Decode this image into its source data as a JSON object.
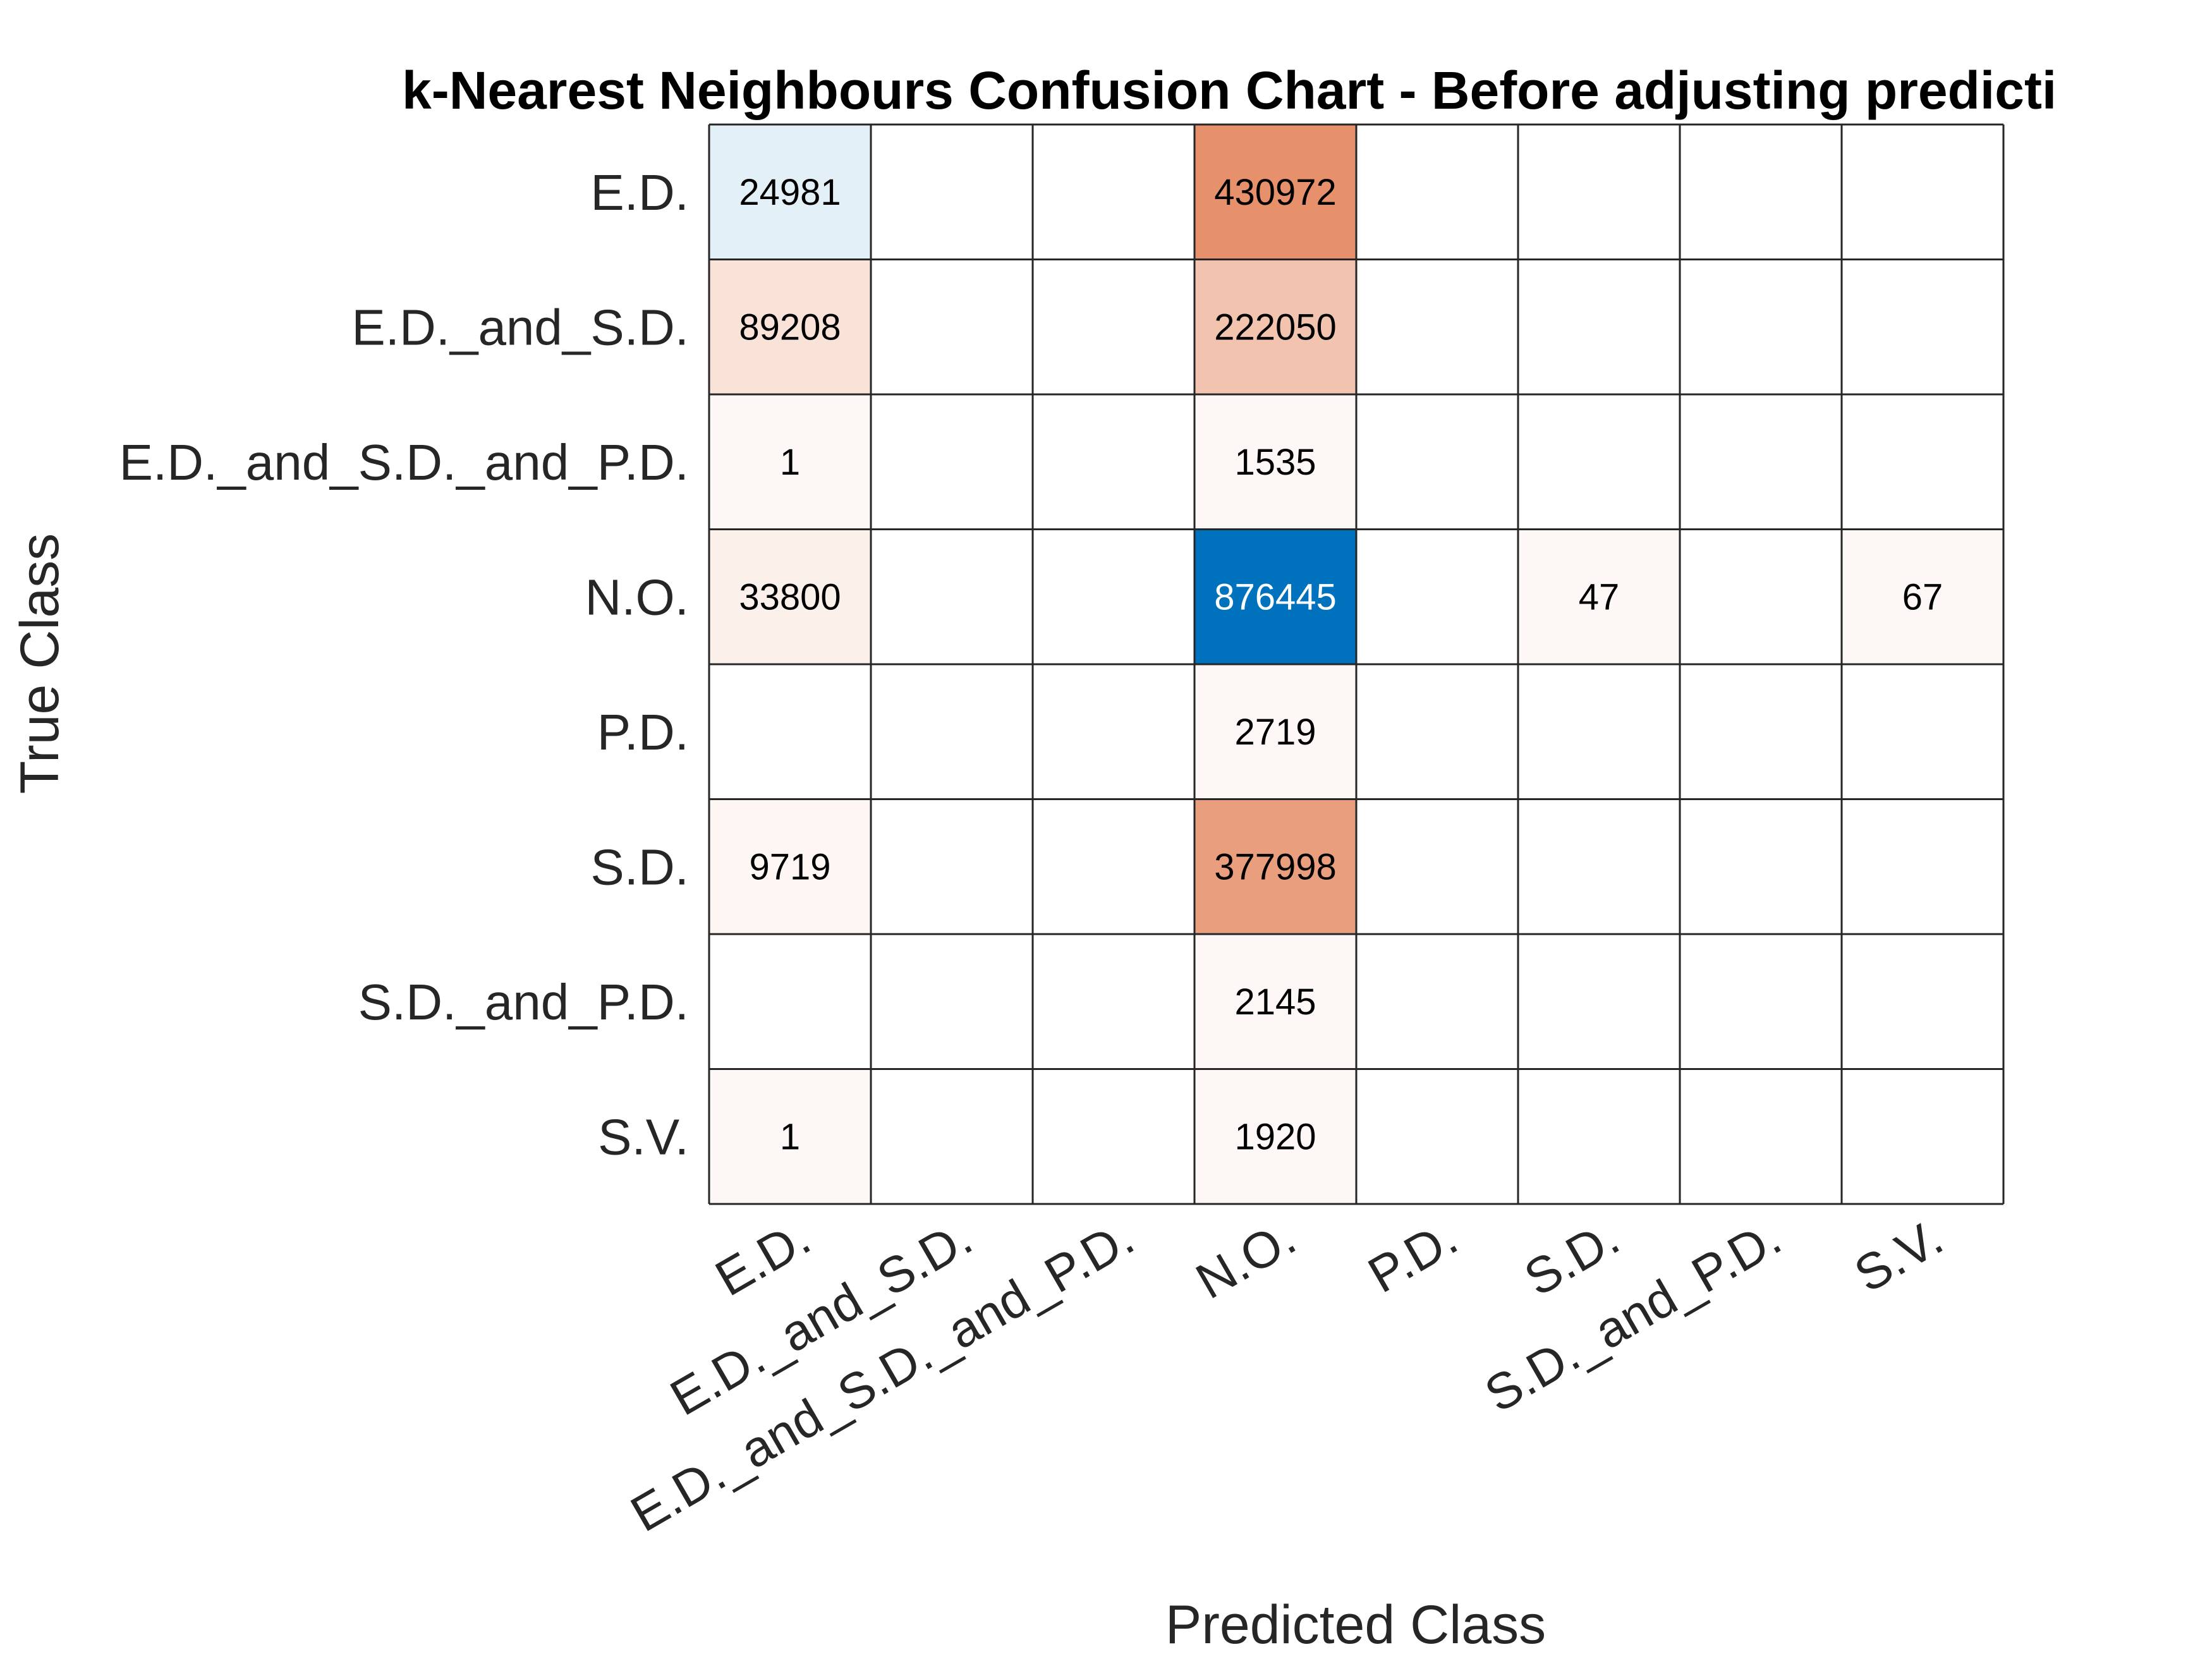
{
  "chart_data": {
    "type": "heatmap",
    "title": "k-Nearest Neighbours Confusion Chart - Before adjusting predicti",
    "xlabel": "Predicted Class",
    "ylabel": "True Class",
    "classes": [
      "E.D.",
      "E.D._and_S.D.",
      "E.D._and_S.D._and_P.D.",
      "N.O.",
      "P.D.",
      "S.D.",
      "S.D._and_P.D.",
      "S.V."
    ],
    "matrix": [
      [
        24981,
        0,
        0,
        430972,
        0,
        0,
        0,
        0
      ],
      [
        89208,
        0,
        0,
        222050,
        0,
        0,
        0,
        0
      ],
      [
        1,
        0,
        0,
        1535,
        0,
        0,
        0,
        0
      ],
      [
        33800,
        0,
        0,
        876445,
        0,
        47,
        0,
        67
      ],
      [
        0,
        0,
        0,
        2719,
        0,
        0,
        0,
        0
      ],
      [
        9719,
        0,
        0,
        377998,
        0,
        0,
        0,
        0
      ],
      [
        0,
        0,
        0,
        2145,
        0,
        0,
        0,
        0
      ],
      [
        1,
        0,
        0,
        1920,
        0,
        0,
        0,
        0
      ]
    ],
    "zero_cells_blank": true,
    "colors": {
      "diagonal_max": "#0072bd",
      "diagonal_min": "#ffffff",
      "off_diagonal_max": "#d95319",
      "off_diagonal_min": "#ffffff",
      "grid_line": "#262626",
      "text_dark": "#000000",
      "text_light": "#ffffff"
    }
  }
}
